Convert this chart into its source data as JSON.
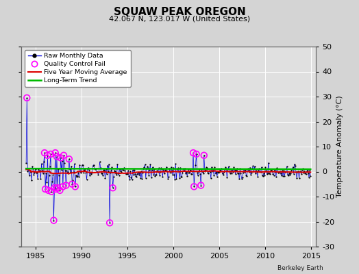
{
  "title": "SQUAW PEAK OREGON",
  "subtitle": "42.067 N, 123.017 W (United States)",
  "ylabel_right": "Temperature Anomaly (°C)",
  "attribution": "Berkeley Earth",
  "xlim": [
    1983.5,
    2015.5
  ],
  "ylim": [
    -30,
    50
  ],
  "xticks": [
    1985,
    1990,
    1995,
    2000,
    2005,
    2010,
    2015
  ],
  "yticks": [
    -30,
    -20,
    -10,
    0,
    10,
    20,
    30,
    40,
    50
  ],
  "background_color": "#d4d4d4",
  "plot_bg_color": "#e0e0e0",
  "grid_color": "#ffffff",
  "raw_line_color": "#0000dd",
  "raw_marker_color": "#000000",
  "qc_fail_color": "#ff00ff",
  "moving_avg_color": "#dd0000",
  "trend_color": "#00bb00",
  "title_fontsize": 11,
  "subtitle_fontsize": 8,
  "tick_fontsize": 8,
  "ylabel_fontsize": 8
}
